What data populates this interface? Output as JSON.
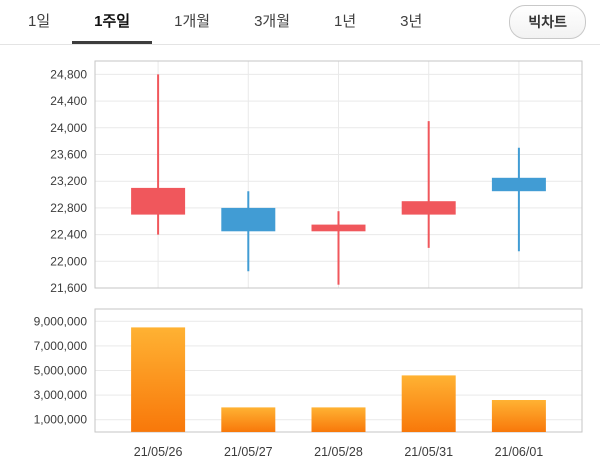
{
  "toolbar": {
    "tabs": [
      {
        "label": "1일",
        "selected": false
      },
      {
        "label": "1주일",
        "selected": true
      },
      {
        "label": "1개월",
        "selected": false
      },
      {
        "label": "3개월",
        "selected": false
      },
      {
        "label": "1년",
        "selected": false
      },
      {
        "label": "3년",
        "selected": false
      }
    ],
    "big_chart_label": "빅차트"
  },
  "colors": {
    "up": "#f0575c",
    "down": "#419cd4",
    "volume_top": "#ffb233",
    "volume_bottom": "#f8780a",
    "grid": "#e9e9e9",
    "frame": "#c6c6c6",
    "axis_text": "#3c3c3c"
  },
  "chart_data": [
    {
      "type": "candlestick",
      "title": "",
      "xlabel": "",
      "ylabel": "",
      "grid": true,
      "legend": "none",
      "dates": [
        "21/05/26",
        "21/05/27",
        "21/05/28",
        "21/05/31",
        "21/06/01"
      ],
      "y_ticks": [
        21600,
        22000,
        22400,
        22800,
        23200,
        23600,
        24000,
        24400,
        24800
      ],
      "ylim": [
        21600,
        25000
      ],
      "candles": [
        {
          "date": "21/05/26",
          "open": 22700,
          "close": 23100,
          "high": 24800,
          "low": 22400,
          "direction": "up"
        },
        {
          "date": "21/05/27",
          "open": 22800,
          "close": 22450,
          "high": 23050,
          "low": 21850,
          "direction": "down"
        },
        {
          "date": "21/05/28",
          "open": 22450,
          "close": 22550,
          "high": 22750,
          "low": 21650,
          "direction": "up"
        },
        {
          "date": "21/05/31",
          "open": 22700,
          "close": 22900,
          "high": 24100,
          "low": 22200,
          "direction": "up"
        },
        {
          "date": "21/06/01",
          "open": 23250,
          "close": 23050,
          "high": 23700,
          "low": 22150,
          "direction": "down"
        }
      ]
    },
    {
      "type": "bar",
      "title": "",
      "xlabel": "",
      "ylabel": "",
      "grid": true,
      "legend": "none",
      "categories": [
        "21/05/26",
        "21/05/27",
        "21/05/28",
        "21/05/31",
        "21/06/01"
      ],
      "values": [
        8500000,
        2000000,
        2000000,
        4600000,
        2600000
      ],
      "y_ticks": [
        1000000,
        3000000,
        5000000,
        7000000,
        9000000
      ],
      "ylim": [
        0,
        10000000
      ]
    }
  ]
}
